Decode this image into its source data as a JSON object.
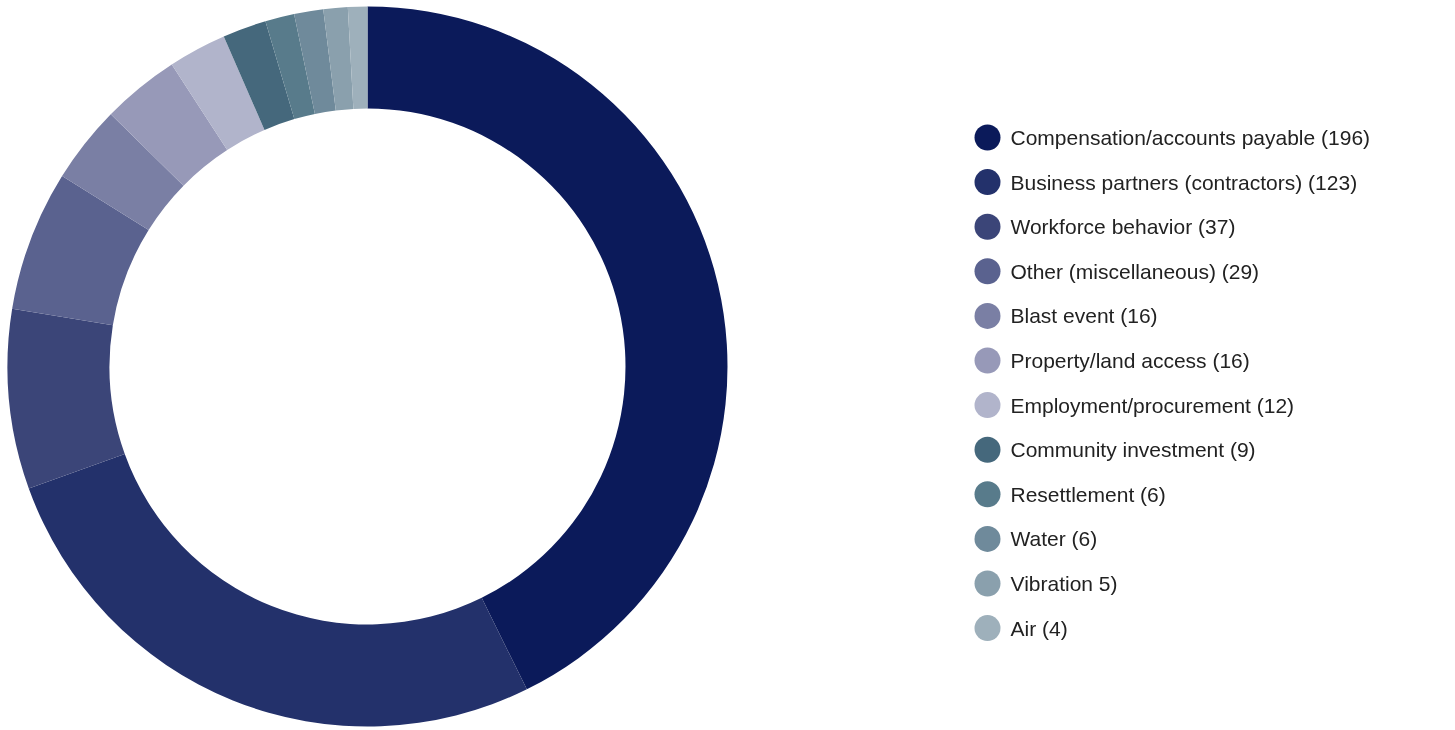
{
  "chart_data": {
    "type": "donut",
    "categories": [
      "Compensation/accounts payable (196)",
      "Business partners (contractors) (123)",
      "Workforce behavior (37)",
      "Other (miscellaneous) (29)",
      "Blast event (16)",
      "Property/land access (16)",
      "Employment/procurement (12)",
      "Community investment (9)",
      "Resettlement (6)",
      "Water (6)",
      "Vibration 5)",
      "Air (4)"
    ],
    "values": [
      196,
      123,
      37,
      29,
      16,
      16,
      12,
      9,
      6,
      6,
      5,
      4
    ],
    "colors": [
      "#0b1a5a",
      "#23316b",
      "#3b4578",
      "#5a628f",
      "#7a7fa4",
      "#9799b8",
      "#b1b4cb",
      "#45687c",
      "#587b8b",
      "#6f8a9b",
      "#8aa0ad",
      "#9eb0bb"
    ],
    "legend": "right"
  }
}
